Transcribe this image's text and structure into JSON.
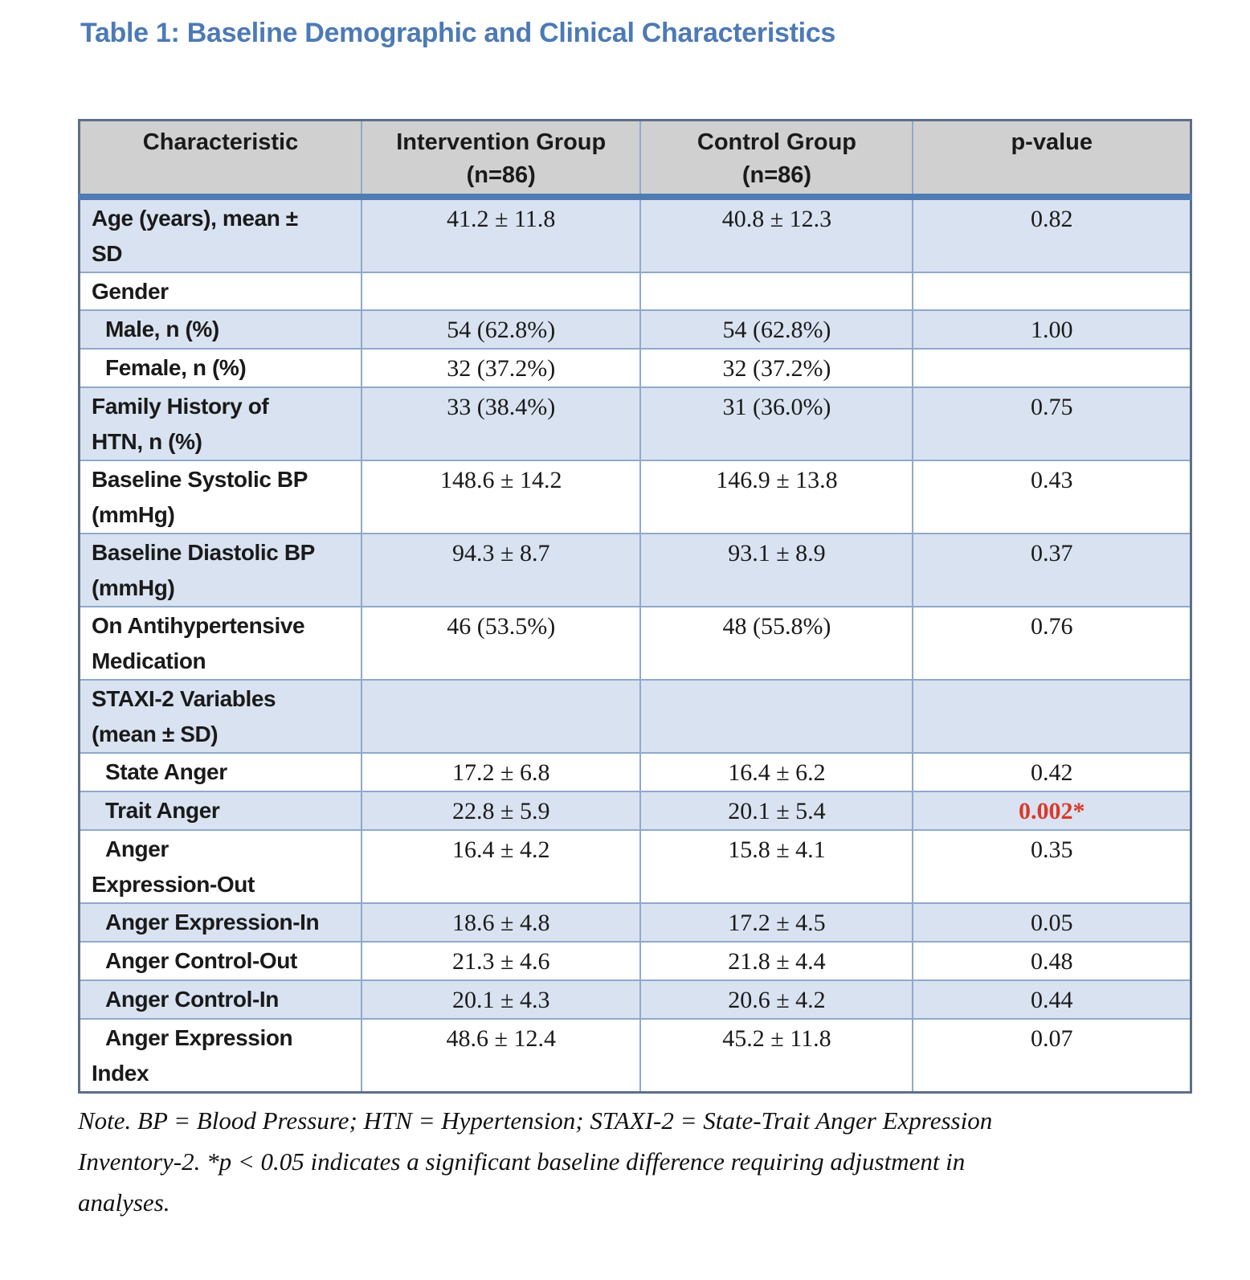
{
  "page": {
    "title": "Table 1: Baseline Demographic and Clinical Characteristics"
  },
  "colors": {
    "title_blue": "#4d7ab5",
    "header_gray": "#d0d0d0",
    "row_light_blue": "#d9e2f0",
    "cell_border_blue": "#8fa9cd",
    "header_underline_blue": "#4f7cb2",
    "significant_red": "#d93a2b"
  },
  "table": {
    "columns": [
      "Characteristic",
      "Intervention Group\n(n=86)",
      "Control Group\n(n=86)",
      "p-value"
    ],
    "rows": [
      {
        "label": "Age (years), mean ±\nSD",
        "indent": false,
        "intervention": "41.2 ± 11.8",
        "control": "40.8 ± 12.3",
        "p": "0.82",
        "significant": false
      },
      {
        "label": "Gender",
        "indent": false,
        "intervention": "",
        "control": "",
        "p": "",
        "significant": false
      },
      {
        "label": "Male, n (%)",
        "indent": true,
        "intervention": "54 (62.8%)",
        "control": "54 (62.8%)",
        "p": "1.00",
        "significant": false
      },
      {
        "label": "Female, n (%)",
        "indent": true,
        "intervention": "32 (37.2%)",
        "control": "32 (37.2%)",
        "p": "",
        "significant": false
      },
      {
        "label": "Family History of\nHTN, n (%)",
        "indent": false,
        "intervention": "33 (38.4%)",
        "control": "31 (36.0%)",
        "p": "0.75",
        "significant": false
      },
      {
        "label": "Baseline Systolic BP\n(mmHg)",
        "indent": false,
        "intervention": "148.6 ± 14.2",
        "control": "146.9 ± 13.8",
        "p": "0.43",
        "significant": false
      },
      {
        "label": "Baseline Diastolic BP\n(mmHg)",
        "indent": false,
        "intervention": "94.3 ± 8.7",
        "control": "93.1 ± 8.9",
        "p": "0.37",
        "significant": false
      },
      {
        "label": "On Antihypertensive\nMedication",
        "indent": false,
        "intervention": "46 (53.5%)",
        "control": "48 (55.8%)",
        "p": "0.76",
        "significant": false
      },
      {
        "label": "STAXI-2 Variables\n(mean ± SD)",
        "indent": false,
        "intervention": "",
        "control": "",
        "p": "",
        "significant": false
      },
      {
        "label": "State Anger",
        "indent": true,
        "intervention": "17.2 ± 6.8",
        "control": "16.4 ± 6.2",
        "p": "0.42",
        "significant": false
      },
      {
        "label": "Trait Anger",
        "indent": true,
        "intervention": "22.8 ± 5.9",
        "control": "20.1 ± 5.4",
        "p": "0.002*",
        "significant": true
      },
      {
        "label": "Anger\nExpression-Out",
        "indent": true,
        "intervention": "16.4 ± 4.2",
        "control": "15.8 ± 4.1",
        "p": "0.35",
        "significant": false
      },
      {
        "label": "Anger Expression-In",
        "indent": true,
        "intervention": "18.6 ± 4.8",
        "control": "17.2 ± 4.5",
        "p": "0.05",
        "significant": false
      },
      {
        "label": "Anger Control-Out",
        "indent": true,
        "intervention": "21.3 ± 4.6",
        "control": "21.8 ± 4.4",
        "p": "0.48",
        "significant": false
      },
      {
        "label": "Anger Control-In",
        "indent": true,
        "intervention": "20.1 ± 4.3",
        "control": "20.6 ± 4.2",
        "p": "0.44",
        "significant": false
      },
      {
        "label": "Anger Expression\nIndex",
        "indent": true,
        "intervention": "48.6 ± 12.4",
        "control": "45.2 ± 11.8",
        "p": "0.07",
        "significant": false
      }
    ]
  },
  "note": "Note. BP = Blood Pressure; HTN = Hypertension; STAXI-2 = State-Trait Anger Expression\nInventory-2. *p < 0.05 indicates a significant baseline difference requiring adjustment in\nanalyses."
}
